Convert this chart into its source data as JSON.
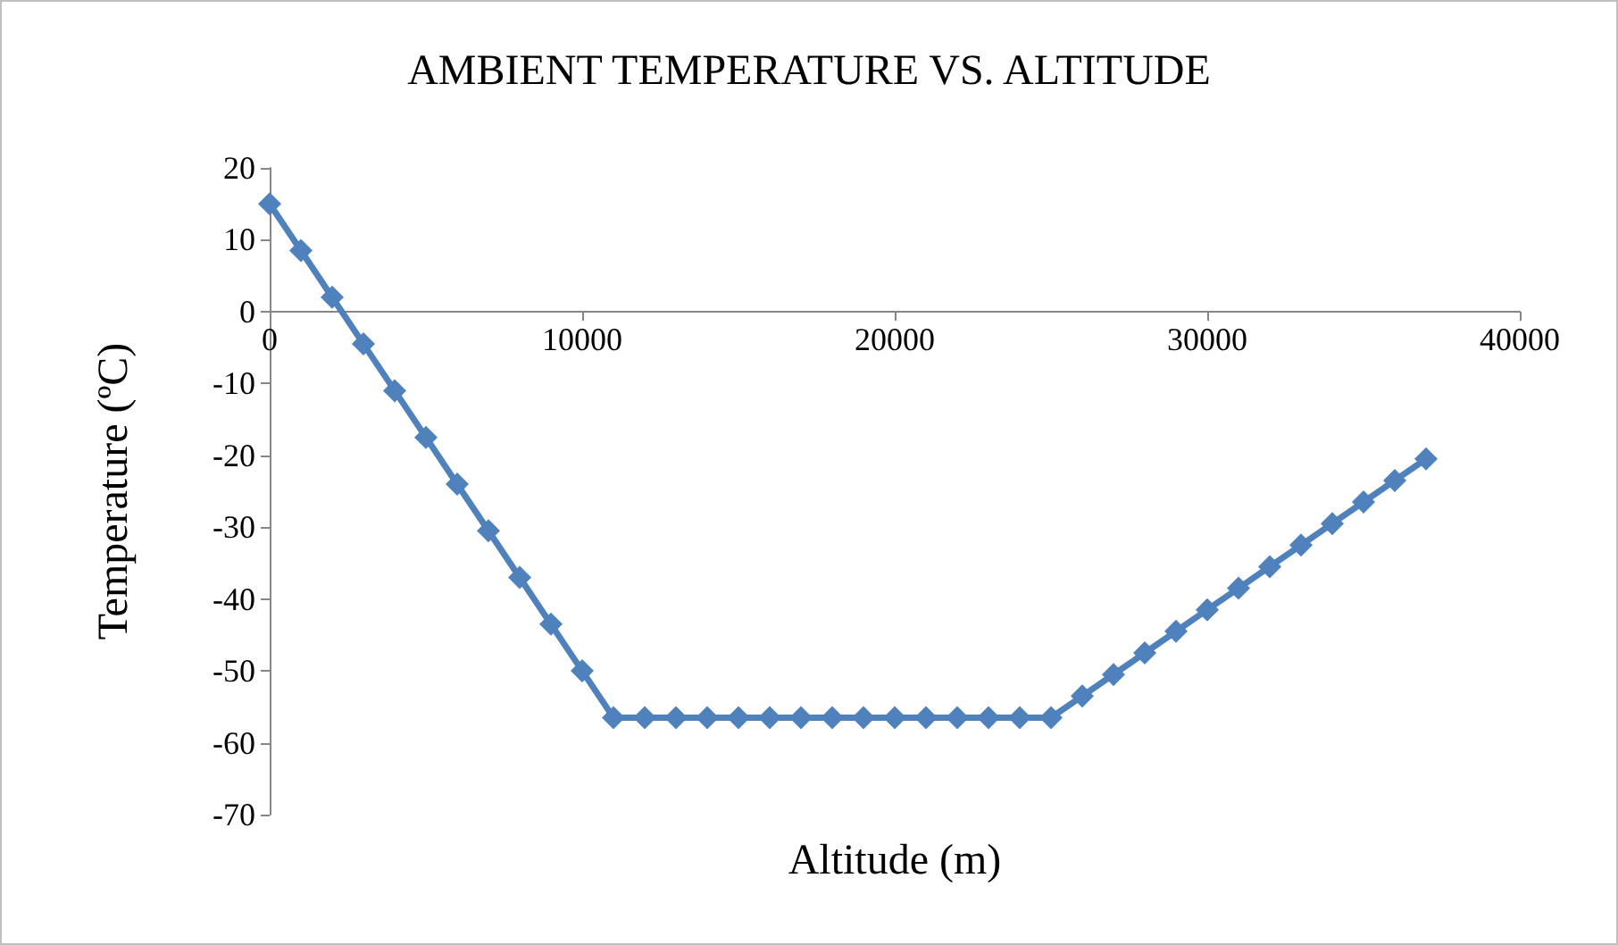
{
  "chart_data": {
    "type": "line",
    "title": "AMBIENT TEMPERATURE VS. ALTITUDE",
    "xlabel": "Altitude (m)",
    "ylabel": "Temperature (ºC)",
    "x": [
      0,
      1000,
      2000,
      3000,
      4000,
      5000,
      6000,
      7000,
      8000,
      9000,
      10000,
      11000,
      12000,
      13000,
      14000,
      15000,
      16000,
      17000,
      18000,
      19000,
      20000,
      21000,
      22000,
      23000,
      24000,
      25000,
      26000,
      27000,
      28000,
      29000,
      30000,
      31000,
      32000,
      33000,
      34000,
      35000,
      36000,
      37000
    ],
    "series": [
      {
        "color": "#4f81bd",
        "values": [
          15,
          8.5,
          2,
          -4.5,
          -11,
          -17.5,
          -24,
          -30.5,
          -37,
          -43.5,
          -50,
          -56.5,
          -56.5,
          -56.5,
          -56.5,
          -56.5,
          -56.5,
          -56.5,
          -56.5,
          -56.5,
          -56.5,
          -56.5,
          -56.5,
          -56.5,
          -56.5,
          -56.5,
          -53.5,
          -50.5,
          -47.5,
          -44.5,
          -41.5,
          -38.5,
          -35.5,
          -32.5,
          -29.5,
          -26.5,
          -23.5,
          -20.5
        ]
      }
    ],
    "xlim": [
      0,
      40000
    ],
    "xticks": [
      0,
      10000,
      20000,
      30000,
      40000
    ],
    "ylim": [
      -70,
      20
    ],
    "yticks": [
      -70,
      -60,
      -50,
      -40,
      -30,
      -20,
      -10,
      0,
      10,
      20
    ],
    "grid": false,
    "marker": "diamond",
    "line_style": "solid"
  }
}
